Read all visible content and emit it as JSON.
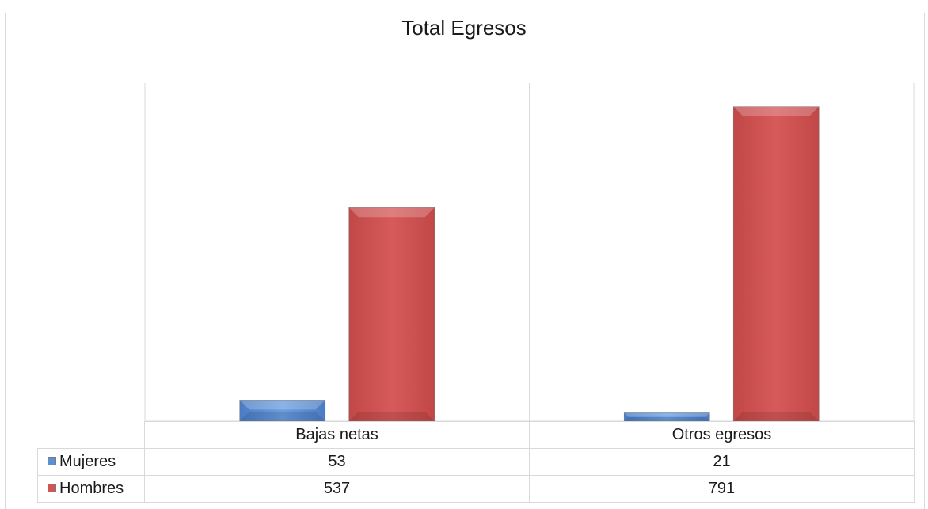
{
  "chart_data": {
    "type": "bar",
    "title": "Total Egresos",
    "categories": [
      "Bajas netas",
      "Otros egresos"
    ],
    "series": [
      {
        "name": "Mujeres",
        "values": [
          53,
          21
        ],
        "color": "#5b8fd6",
        "icon": "blue-square-icon"
      },
      {
        "name": "Hombres",
        "values": [
          537,
          791
        ],
        "color": "#d05555",
        "icon": "red-square-icon"
      }
    ],
    "ylim": [
      0,
      850
    ],
    "grid": true,
    "legend": "data-table"
  }
}
